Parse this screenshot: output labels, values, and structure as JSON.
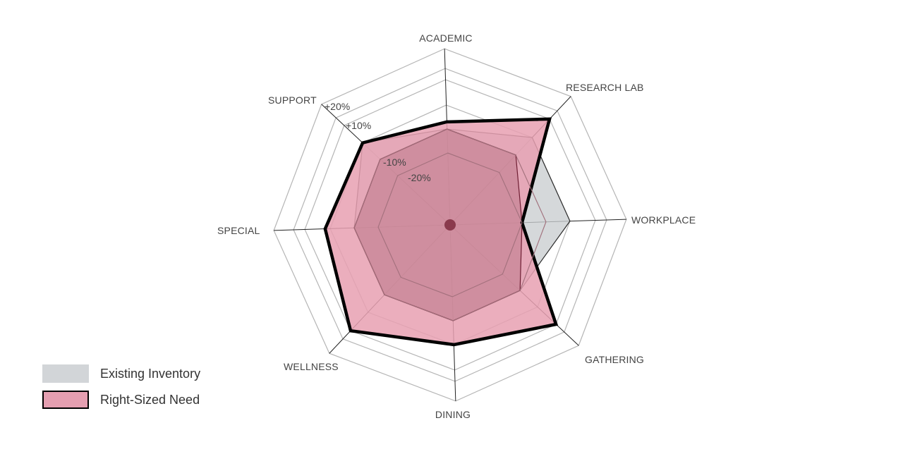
{
  "chart_data": {
    "type": "radar",
    "axes": [
      "ACADEMIC",
      "RESEARCH LAB",
      "WORKPLACE",
      "GATHERING",
      "DINING",
      "WELLNESS",
      "SPECIAL",
      "SUPPORT"
    ],
    "ticks": [
      "-20%",
      "-10%",
      "+10%",
      "+20%"
    ],
    "series": [
      {
        "name": "Existing Inventory",
        "color": "#c9cdd0",
        "values": [
          -10,
          0,
          0,
          -10,
          -10,
          -10,
          -10,
          0
        ]
      },
      {
        "name": "Right-Sized Need",
        "color": "#e8a0b2",
        "values": [
          -7,
          10,
          -20,
          10,
          0,
          10,
          2,
          0
        ]
      }
    ]
  },
  "legend": [
    {
      "label": "Existing Inventory",
      "color": "#d2d5d8"
    },
    {
      "label": "Right-Sized Need",
      "color": "#e59fb1"
    }
  ]
}
